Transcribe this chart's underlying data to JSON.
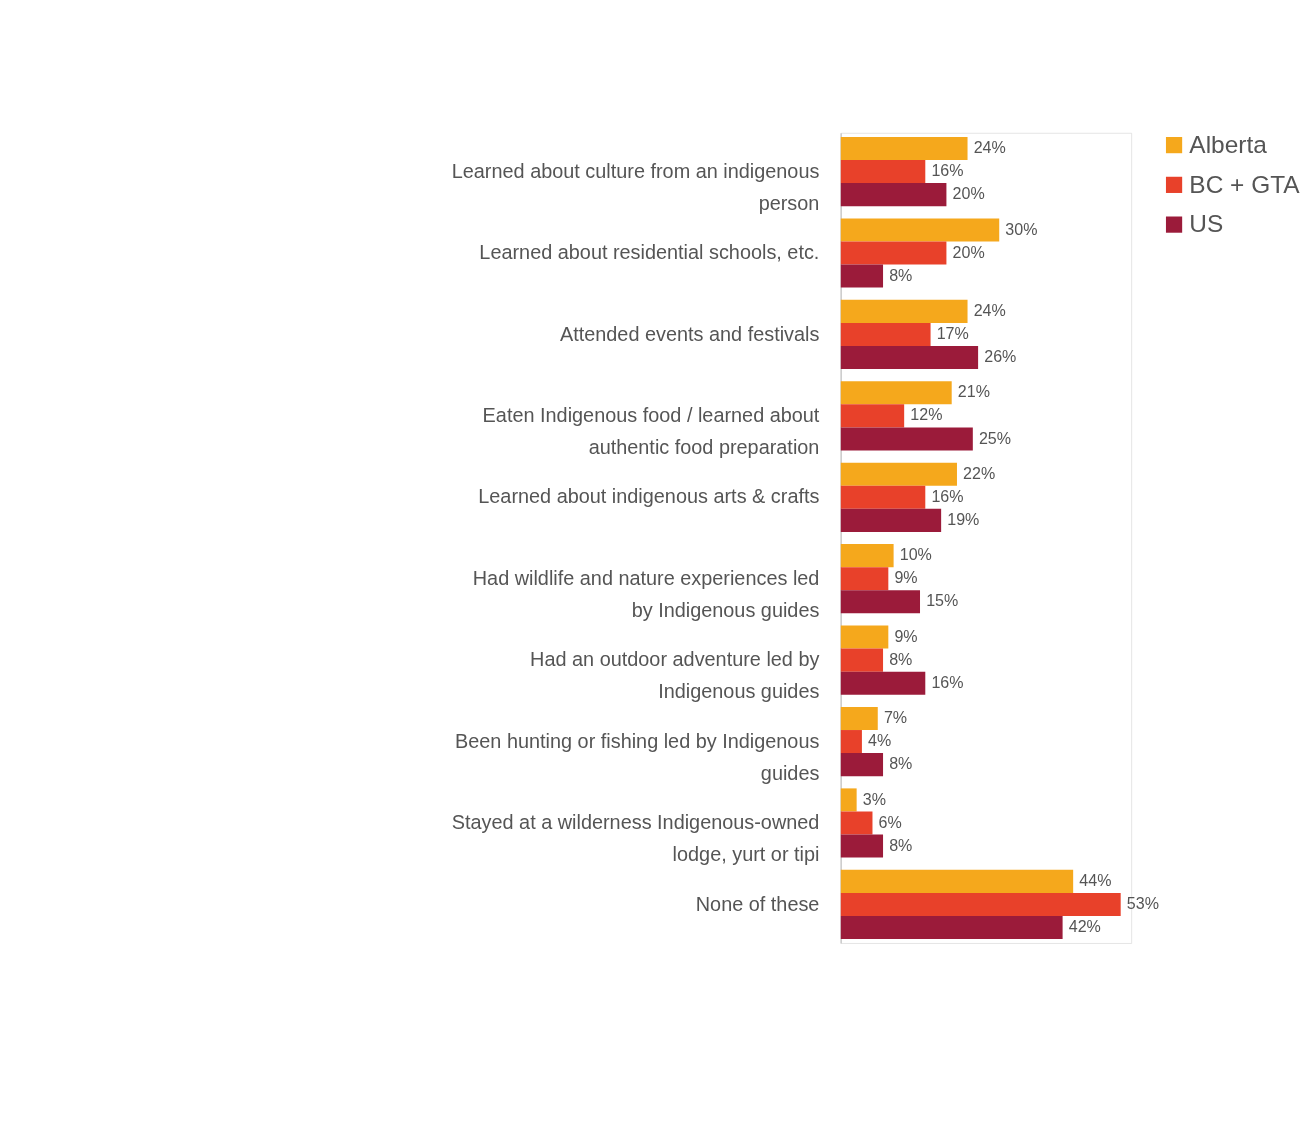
{
  "chart_data": {
    "type": "bar",
    "orientation": "horizontal",
    "legend": "right",
    "categories": [
      "Learned about culture from an indigenous person",
      "Learned about residential schools, etc.",
      "Attended events and festivals",
      "Eaten Indigenous food / learned about authentic food preparation",
      "Learned about indigenous arts & crafts",
      "Had wildlife and nature experiences led by Indigenous guides",
      "Had an outdoor adventure led by Indigenous guides",
      "Been hunting or fishing led by Indigenous guides",
      "Stayed at a wilderness Indigenous-owned lodge, yurt or tipi",
      "None of these"
    ],
    "series": [
      {
        "name": "Alberta",
        "color": "#f5a81c",
        "values": [
          24,
          30,
          24,
          21,
          22,
          10,
          9,
          7,
          3,
          44
        ],
        "value_labels": [
          "24%",
          "30%",
          "24%",
          "21%",
          "22%",
          "10%",
          "9%",
          "7%",
          "3%",
          "44%"
        ]
      },
      {
        "name": "BC + GTA",
        "color": "#e8412a",
        "values": [
          16,
          20,
          17,
          12,
          16,
          9,
          8,
          4,
          6,
          53
        ],
        "value_labels": [
          "16%",
          "20%",
          "17%",
          "12%",
          "16%",
          "9%",
          "8%",
          "4%",
          "6%",
          "53%"
        ]
      },
      {
        "name": "US",
        "color": "#9b1b3a",
        "values": [
          20,
          8,
          26,
          25,
          19,
          15,
          16,
          8,
          8,
          42
        ],
        "value_labels": [
          "20%",
          "8%",
          "26%",
          "25%",
          "19%",
          "15%",
          "16%",
          "8%",
          "8%",
          "42%"
        ]
      }
    ]
  }
}
